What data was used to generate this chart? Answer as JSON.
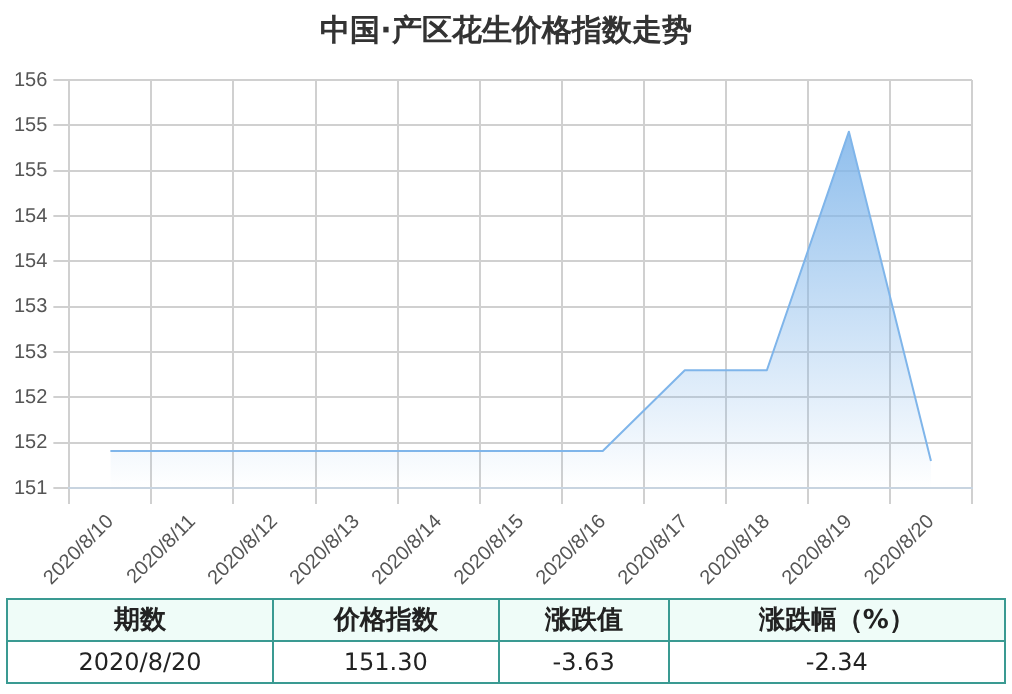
{
  "chart_data": {
    "type": "area",
    "title": "中国·产区花生价格指数走势",
    "categories": [
      "2020/8/10",
      "2020/8/11",
      "2020/8/12",
      "2020/8/13",
      "2020/8/14",
      "2020/8/15",
      "2020/8/16",
      "2020/8/17",
      "2020/8/18",
      "2020/8/19",
      "2020/8/20"
    ],
    "series": [
      {
        "color": "#7fb5ea",
        "values": [
          151.41,
          151.41,
          151.41,
          151.41,
          151.41,
          151.41,
          151.41,
          152.3,
          152.3,
          154.93,
          151.3
        ]
      }
    ],
    "ylim": [
      151,
      155.5
    ],
    "yticks": [
      151,
      {
        "value": 151.5,
        "label": "152"
      },
      152,
      {
        "value": 152.5,
        "label": "153"
      },
      153,
      {
        "value": 153.5,
        "label": "154"
      },
      154,
      {
        "value": 154.5,
        "label": "155"
      },
      155,
      {
        "value": 155.5,
        "label": "156"
      }
    ],
    "grid": true,
    "legend": false,
    "annotations": [
      "期数",
      "价格指数",
      "涨跌值",
      "涨跌幅（%）",
      "2020/8/20",
      "151.30",
      "-3.63",
      "-2.34"
    ]
  }
}
